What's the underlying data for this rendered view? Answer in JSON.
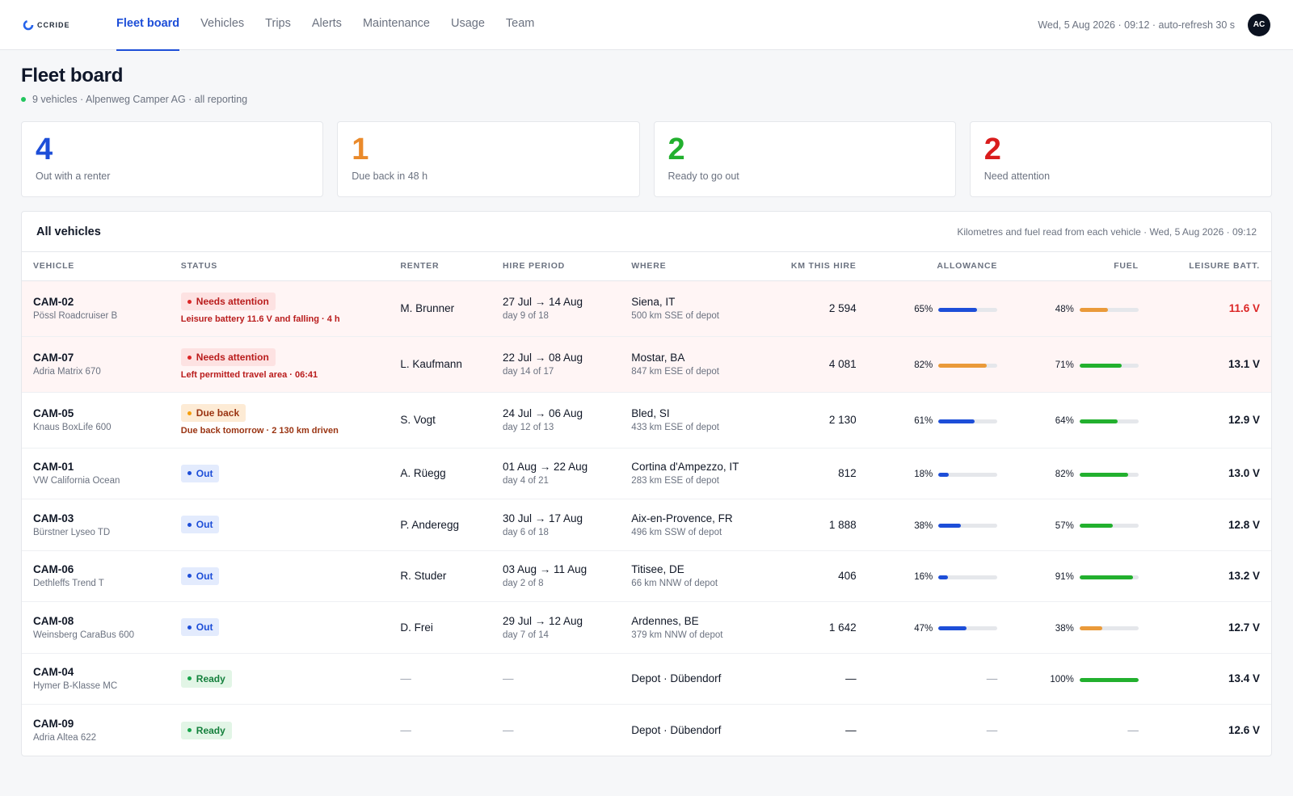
{
  "app": {
    "logo_text": "CCRIDE",
    "nav": [
      {
        "label": "Fleet board",
        "active": true
      },
      {
        "label": "Vehicles",
        "active": false
      },
      {
        "label": "Trips",
        "active": false
      },
      {
        "label": "Alerts",
        "active": false
      },
      {
        "label": "Maintenance",
        "active": false
      },
      {
        "label": "Usage",
        "active": false
      },
      {
        "label": "Team",
        "active": false
      }
    ],
    "top_meta": "Wed, 5 Aug 2026 · 09:12 · auto-refresh 30 s",
    "avatar_initials": "AC"
  },
  "page": {
    "title": "Fleet board",
    "subtitle": "9 vehicles · Alpenweg Camper AG · all reporting"
  },
  "summary": [
    {
      "value": "4",
      "label": "Out with a renter",
      "color": "#1d4ed8"
    },
    {
      "value": "1",
      "label": "Due back in 48 h",
      "color": "#ea8a2b"
    },
    {
      "value": "2",
      "label": "Ready to go out",
      "color": "#22b02e"
    },
    {
      "value": "2",
      "label": "Need attention",
      "color": "#d91c1c"
    }
  ],
  "table": {
    "title": "All vehicles",
    "note": "Kilometres and fuel read from each vehicle · Wed, 5 Aug 2026 · 09:12",
    "columns": [
      "Vehicle",
      "Status",
      "Renter",
      "Hire period",
      "Where",
      "Km this hire",
      "Allowance",
      "Fuel",
      "Leisure batt."
    ],
    "rows": [
      {
        "id": "CAM-02",
        "model": "Pössl Roadcruiser B",
        "status": "Needs attention",
        "status_kind": "red",
        "status_note": "Leisure battery 11.6 V and falling · 4 h",
        "renter": "M. Brunner",
        "period": "27 Jul → 14 Aug",
        "period_sub": "day 9 of 18",
        "where": "Siena, IT",
        "where_sub": "500 km SSE of depot",
        "km": "2 594",
        "allowance": 65,
        "allowance_label": "65%",
        "allowance_color": "#1d4ed8",
        "fuel": 48,
        "fuel_label": "48%",
        "fuel_color": "#ea9a3a",
        "batt": "11.6 V",
        "batt_low": true
      },
      {
        "id": "CAM-07",
        "model": "Adria Matrix 670",
        "status": "Needs attention",
        "status_kind": "red",
        "status_note": "Left permitted travel area · 06:41",
        "renter": "L. Kaufmann",
        "period": "22 Jul → 08 Aug",
        "period_sub": "day 14 of 17",
        "where": "Mostar, BA",
        "where_sub": "847 km ESE of depot",
        "km": "4 081",
        "allowance": 82,
        "allowance_label": "82%",
        "allowance_color": "#ea9a3a",
        "fuel": 71,
        "fuel_label": "71%",
        "fuel_color": "#22b02e",
        "batt": "13.1 V",
        "batt_low": false
      },
      {
        "id": "CAM-05",
        "model": "Knaus BoxLife 600",
        "status": "Due back",
        "status_kind": "amber",
        "status_note": "Due back tomorrow · 2 130 km driven",
        "renter": "S. Vogt",
        "period": "24 Jul → 06 Aug",
        "period_sub": "day 12 of 13",
        "where": "Bled, SI",
        "where_sub": "433 km ESE of depot",
        "km": "2 130",
        "allowance": 61,
        "allowance_label": "61%",
        "allowance_color": "#1d4ed8",
        "fuel": 64,
        "fuel_label": "64%",
        "fuel_color": "#22b02e",
        "batt": "12.9 V",
        "batt_low": false
      },
      {
        "id": "CAM-01",
        "model": "VW California Ocean",
        "status": "Out",
        "status_kind": "blue",
        "status_note": "",
        "renter": "A. Rüegg",
        "period": "01 Aug → 22 Aug",
        "period_sub": "day 4 of 21",
        "where": "Cortina d'Ampezzo, IT",
        "where_sub": "283 km ESE of depot",
        "km": "812",
        "allowance": 18,
        "allowance_label": "18%",
        "allowance_color": "#1d4ed8",
        "fuel": 82,
        "fuel_label": "82%",
        "fuel_color": "#22b02e",
        "batt": "13.0 V",
        "batt_low": false
      },
      {
        "id": "CAM-03",
        "model": "Bürstner Lyseo TD",
        "status": "Out",
        "status_kind": "blue",
        "status_note": "",
        "renter": "P. Anderegg",
        "period": "30 Jul → 17 Aug",
        "period_sub": "day 6 of 18",
        "where": "Aix-en-Provence, FR",
        "where_sub": "496 km SSW of depot",
        "km": "1 888",
        "allowance": 38,
        "allowance_label": "38%",
        "allowance_color": "#1d4ed8",
        "fuel": 57,
        "fuel_label": "57%",
        "fuel_color": "#22b02e",
        "batt": "12.8 V",
        "batt_low": false
      },
      {
        "id": "CAM-06",
        "model": "Dethleffs Trend T",
        "status": "Out",
        "status_kind": "blue",
        "status_note": "",
        "renter": "R. Studer",
        "period": "03 Aug → 11 Aug",
        "period_sub": "day 2 of 8",
        "where": "Titisee, DE",
        "where_sub": "66 km NNW of depot",
        "km": "406",
        "allowance": 16,
        "allowance_label": "16%",
        "allowance_color": "#1d4ed8",
        "fuel": 91,
        "fuel_label": "91%",
        "fuel_color": "#22b02e",
        "batt": "13.2 V",
        "batt_low": false
      },
      {
        "id": "CAM-08",
        "model": "Weinsberg CaraBus 600",
        "status": "Out",
        "status_kind": "blue",
        "status_note": "",
        "renter": "D. Frei",
        "period": "29 Jul → 12 Aug",
        "period_sub": "day 7 of 14",
        "where": "Ardennes, BE",
        "where_sub": "379 km NNW of depot",
        "km": "1 642",
        "allowance": 47,
        "allowance_label": "47%",
        "allowance_color": "#1d4ed8",
        "fuel": 38,
        "fuel_label": "38%",
        "fuel_color": "#ea9a3a",
        "batt": "12.7 V",
        "batt_low": false
      },
      {
        "id": "CAM-04",
        "model": "Hymer B-Klasse MC",
        "status": "Ready",
        "status_kind": "green",
        "status_note": "",
        "renter": "—",
        "period": "—",
        "period_sub": "",
        "where": "Depot · Dübendorf",
        "where_sub": "",
        "km": "—",
        "allowance": null,
        "allowance_label": "—",
        "allowance_color": "",
        "fuel": 100,
        "fuel_label": "100%",
        "fuel_color": "#22b02e",
        "batt": "13.4 V",
        "batt_low": false
      },
      {
        "id": "CAM-09",
        "model": "Adria Altea 622",
        "status": "Ready",
        "status_kind": "green",
        "status_note": "",
        "renter": "—",
        "period": "—",
        "period_sub": "",
        "where": "Depot · Dübendorf",
        "where_sub": "",
        "km": "—",
        "allowance": null,
        "allowance_label": "—",
        "allowance_color": "",
        "fuel": null,
        "fuel_label": "—",
        "fuel_color": "",
        "batt": "12.6 V",
        "batt_low": false
      }
    ]
  }
}
